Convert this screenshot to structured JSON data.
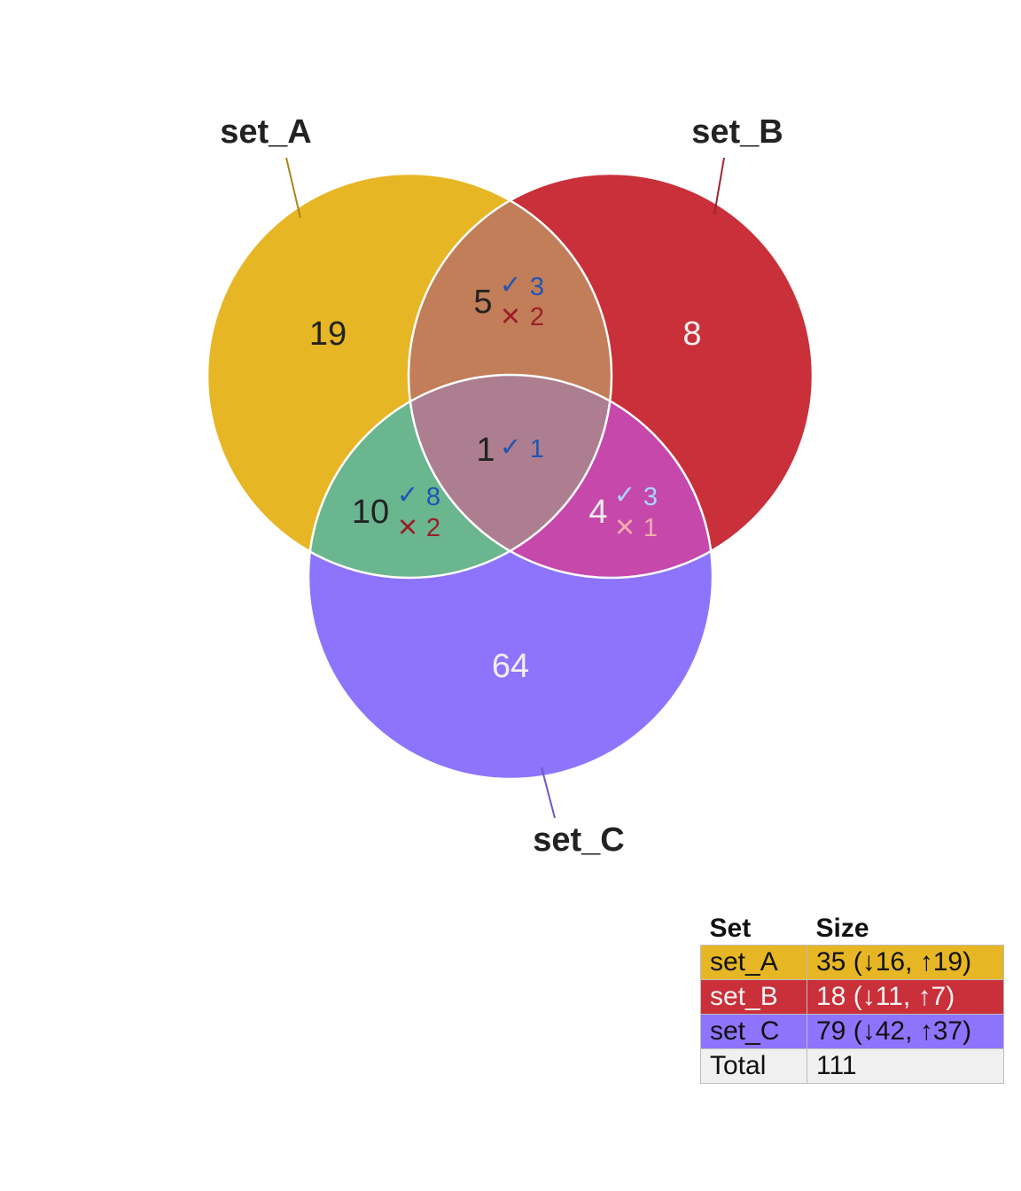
{
  "sets": [
    {
      "name": "set_A",
      "color": "#E6B625",
      "label_color": "#222222"
    },
    {
      "name": "set_B",
      "color": "#C93039",
      "label_color": "#222222"
    },
    {
      "name": "set_C",
      "color": "#8D74FD",
      "label_color": "#222222"
    }
  ],
  "regions": [
    {
      "id": "A_only",
      "count": "19",
      "fill": "#E6B625",
      "text_color": "#222222",
      "up": "",
      "down": ""
    },
    {
      "id": "B_only",
      "count": "8",
      "fill": "#C93039",
      "text_color": "#F2EFEF",
      "up": "",
      "down": ""
    },
    {
      "id": "C_only",
      "count": "64",
      "fill": "#8D74FD",
      "text_color": "#F2EFEF",
      "up": "",
      "down": ""
    },
    {
      "id": "AB",
      "count": "5",
      "fill": "#C27D59",
      "text_color": "#222222",
      "up": "3",
      "down": "2"
    },
    {
      "id": "AC",
      "count": "10",
      "fill": "#6AB68F",
      "text_color": "#222222",
      "up": "8",
      "down": "2"
    },
    {
      "id": "BC",
      "count": "4",
      "fill": "#C648AB",
      "text_color": "#F2EFEF",
      "up": "3",
      "down": "1"
    },
    {
      "id": "ABC",
      "count": "1",
      "fill": "#AD7E8F",
      "text_color": "#222222",
      "up": "1",
      "down": ""
    }
  ],
  "marks": {
    "up_symbol": "✓",
    "down_symbol": "✕",
    "up_color": "#1F55B4",
    "down_color": "#9B1F28",
    "up_color_light": "#A8D7FA",
    "down_color_light": "#F4ACAE"
  },
  "legend": {
    "headers": [
      "Set",
      "Size"
    ],
    "rows": [
      {
        "set": "set_A",
        "size": "35 (↓16, ↑19)",
        "bg": "#E6B625",
        "fg": "#111111"
      },
      {
        "set": "set_B",
        "size": "18 (↓11, ↑7)",
        "bg": "#C93039",
        "fg": "#F5F2F2"
      },
      {
        "set": "set_C",
        "size": "79 (↓42, ↑37)",
        "bg": "#8D74FD",
        "fg": "#111111"
      },
      {
        "set": "Total",
        "size": "111",
        "bg": "#F0F0F0",
        "fg": "#111111"
      }
    ]
  }
}
